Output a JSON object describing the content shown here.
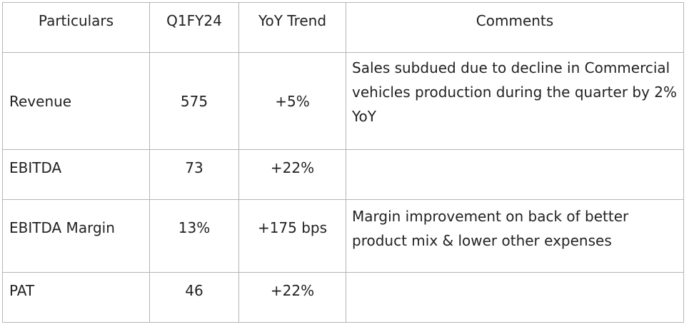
{
  "table": {
    "headers": [
      "Particulars",
      "Q1FY24",
      "YoY Trend",
      "Comments"
    ],
    "rows": [
      {
        "particular": "Revenue",
        "value": "575",
        "trend": "+5%",
        "comment": "Sales subdued due to decline in Commercial vehicles production during the quarter by 2% YoY"
      },
      {
        "particular": "EBITDA",
        "value": "73",
        "trend": "+22%",
        "comment": ""
      },
      {
        "particular": "EBITDA Margin",
        "value": "13%",
        "trend": "+175 bps",
        "comment": "Margin improvement on back of better product mix & lower other expenses"
      },
      {
        "particular": "PAT",
        "value": "46",
        "trend": "+22%",
        "comment": ""
      }
    ]
  }
}
